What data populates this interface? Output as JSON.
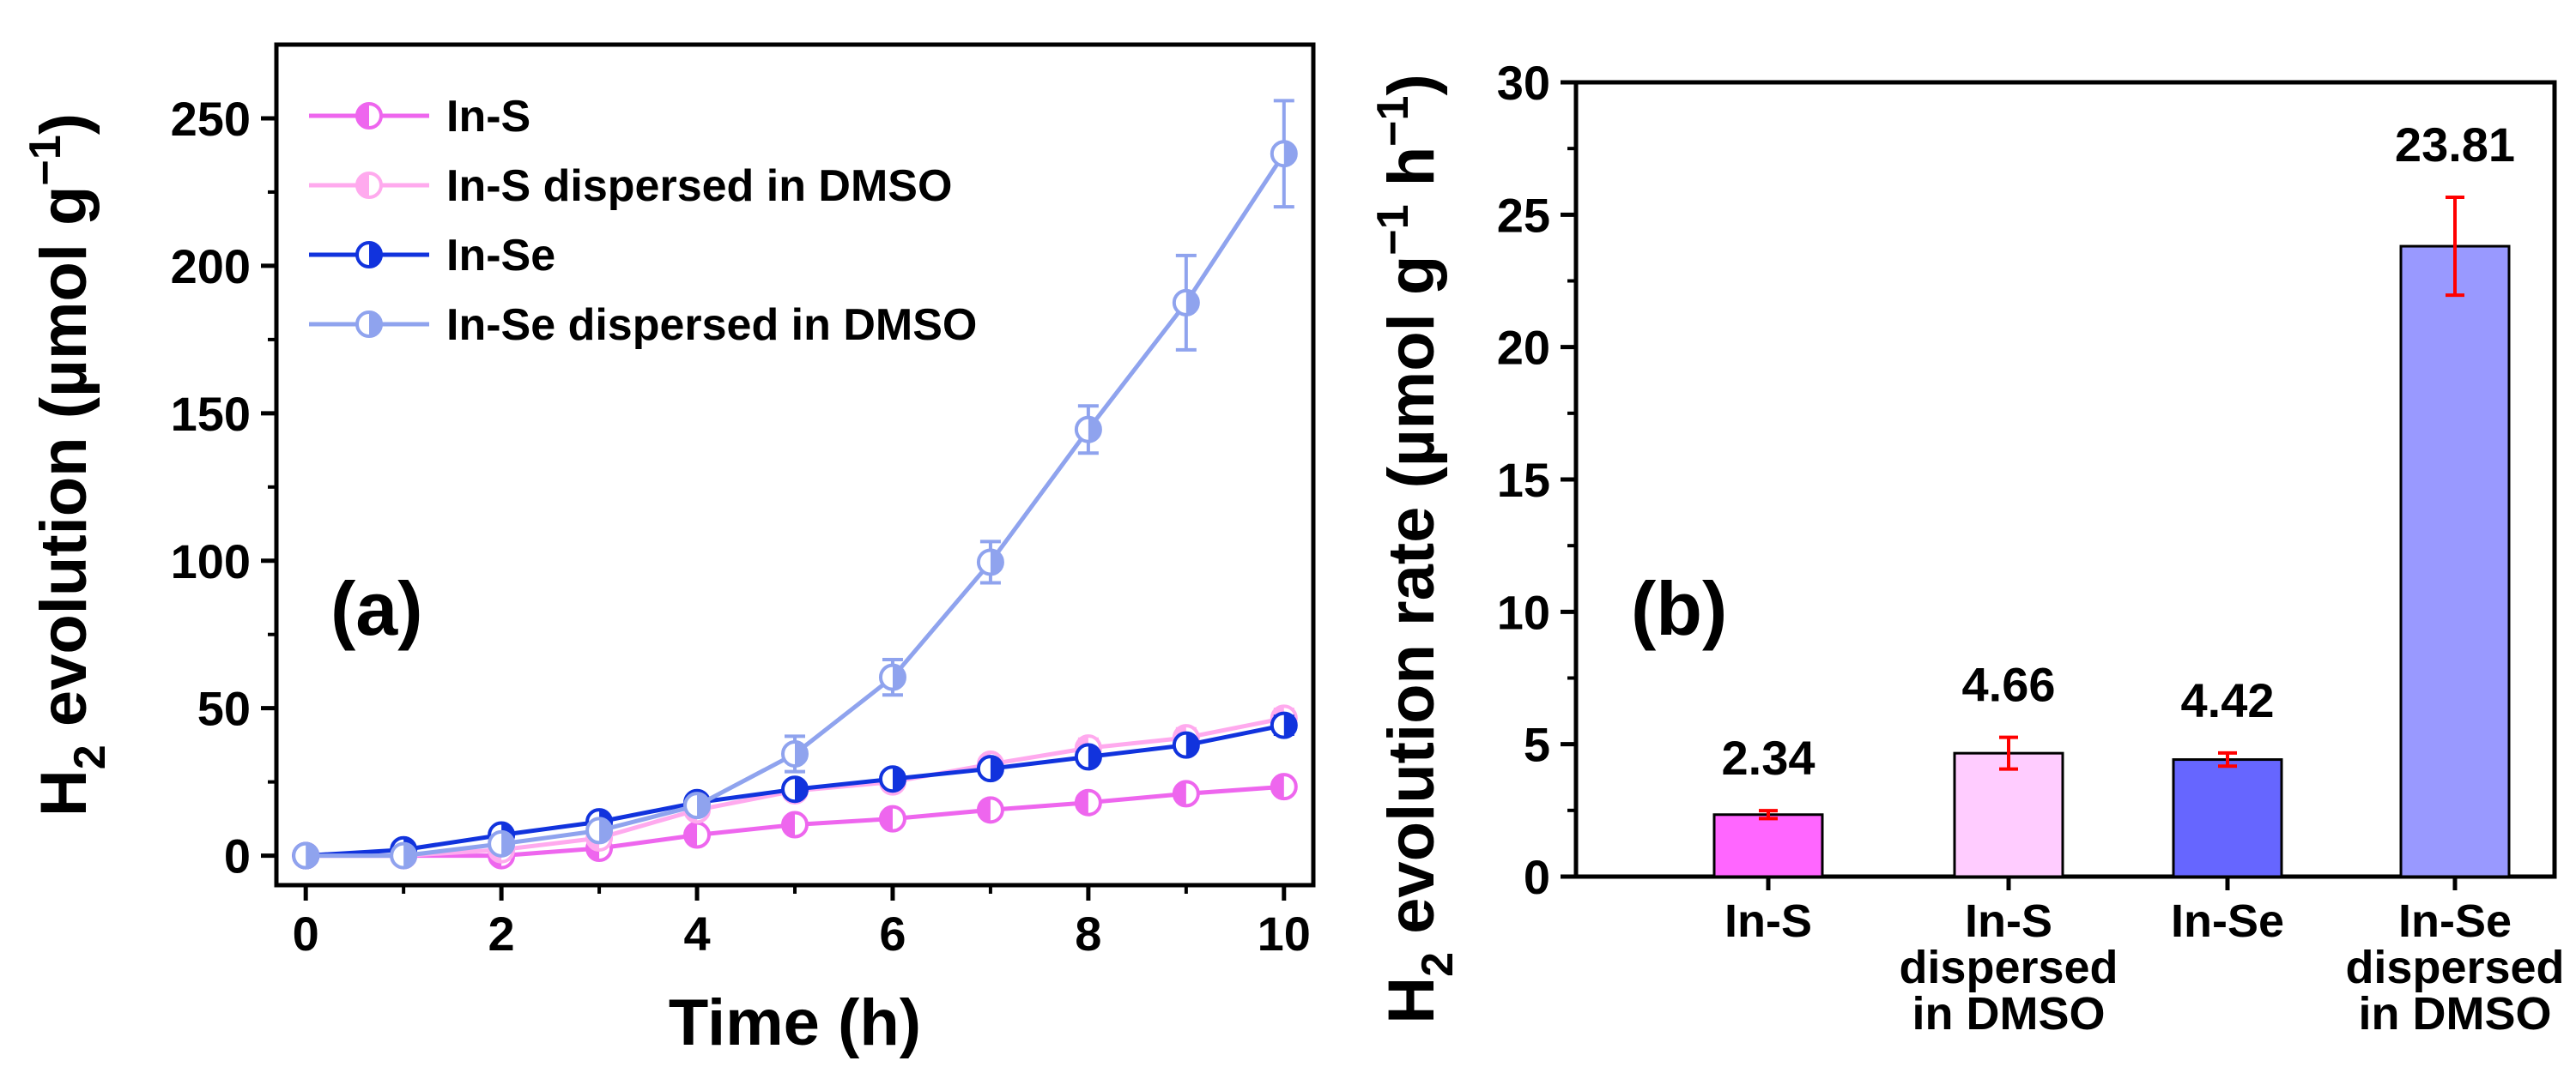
{
  "chart_data": [
    {
      "type": "line",
      "panel_label": "(a)",
      "xlabel": "Time (h)",
      "ylabel": {
        "pre": "H",
        "sub": "2",
        "main": " evolution (µmol g",
        "sup": "−1",
        "post": ")"
      },
      "xlim": [
        -0.3,
        10.3
      ],
      "ylim": [
        -10,
        275
      ],
      "xticks": [
        0,
        2,
        4,
        6,
        8,
        10
      ],
      "yticks": [
        0,
        50,
        100,
        150,
        200,
        250
      ],
      "x": [
        0,
        1,
        2,
        3,
        4,
        5,
        6,
        7,
        8,
        9,
        10
      ],
      "legend_position": "top-left",
      "series": [
        {
          "name": "In-S",
          "color": "#ee66ee",
          "marker": "half-left",
          "values": [
            0,
            0,
            0,
            2.5,
            7,
            10.5,
            12.5,
            15.5,
            18,
            21,
            23.4
          ],
          "errors": [
            1,
            1,
            1,
            1.5,
            2,
            2,
            2,
            2,
            2,
            2.5,
            2.5
          ]
        },
        {
          "name": "In-S dispersed in DMSO",
          "color": "#ffaaee",
          "marker": "half-left",
          "values": [
            0,
            0,
            2,
            6,
            15.5,
            22,
            25,
            31,
            36.5,
            40,
            46.6
          ],
          "errors": [
            1,
            1,
            1.5,
            2,
            2,
            2,
            2.5,
            2.5,
            3,
            3,
            3
          ]
        },
        {
          "name": "In-Se",
          "color": "#1133dd",
          "marker": "half-right",
          "values": [
            0,
            2,
            7,
            11.5,
            18,
            22.5,
            26,
            29.5,
            33.5,
            37.5,
            44.2
          ],
          "errors": [
            1,
            1.5,
            1.5,
            2,
            2,
            2,
            2,
            2,
            2.5,
            2.5,
            3
          ]
        },
        {
          "name": "In-Se dispersed in DMSO",
          "color": "#8fa3ee",
          "marker": "half-right",
          "values": [
            0,
            0,
            4,
            8.5,
            17,
            34.5,
            60.5,
            99.5,
            144.5,
            187.5,
            238
          ],
          "errors": [
            1,
            1,
            1.5,
            2,
            2,
            6,
            6,
            7,
            8,
            16,
            18
          ]
        }
      ]
    },
    {
      "type": "bar",
      "panel_label": "(b)",
      "ylabel": {
        "pre": "H",
        "sub": "2",
        "main": " evolution rate (µmol g",
        "sup1": "−1",
        "mid": " h",
        "sup2": "−1",
        "post": ")"
      },
      "ylim": [
        0,
        30
      ],
      "yticks": [
        0,
        5,
        10,
        15,
        20,
        25,
        30
      ],
      "categories": [
        [
          "In-S"
        ],
        [
          "In-S",
          "dispersed",
          "in DMSO"
        ],
        [
          "In-Se"
        ],
        [
          "In-Se",
          "dispersed",
          "in DMSO"
        ]
      ],
      "values": [
        2.34,
        4.66,
        4.42,
        23.81
      ],
      "value_labels": [
        "2.34",
        "4.66",
        "4.42",
        "23.81"
      ],
      "errors": [
        0.15,
        0.6,
        0.25,
        1.85
      ],
      "colors": [
        "#ff66ff",
        "#ffccff",
        "#6666ff",
        "#9999ff"
      ],
      "error_color": "#ff0000"
    }
  ]
}
